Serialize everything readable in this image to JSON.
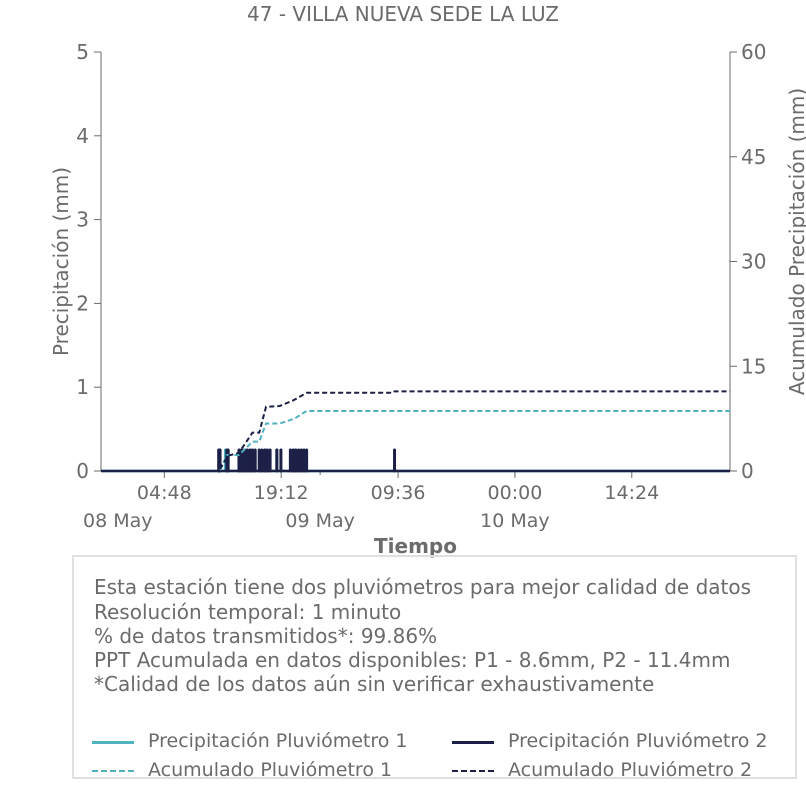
{
  "chart_data": {
    "type": "line",
    "title": "47 - VILLA NUEVA SEDE LA LUZ",
    "xlabel": "Tiempo",
    "ylabel": "Precipitación (mm)",
    "y2label": "Acumulado Precipitación (mm)",
    "xlim": [
      "2024-05-07 21:00",
      "2024-05-11 02:30"
    ],
    "ylim": [
      0,
      5
    ],
    "y2lim": [
      0,
      60
    ],
    "yticks": [
      0,
      1,
      2,
      3,
      4,
      5
    ],
    "y2ticks": [
      0,
      15,
      30,
      45,
      60
    ],
    "xticks": [
      {
        "t": "2024-05-08 04:48",
        "time": "04:48",
        "date": "08 May"
      },
      {
        "t": "2024-05-08 19:12",
        "time": "19:12",
        "date": ""
      },
      {
        "t": "2024-05-09 09:36",
        "time": "09:36",
        "date": ""
      },
      {
        "t": "2024-05-10 00:00",
        "time": "00:00",
        "date": "10 May"
      },
      {
        "t": "2024-05-10 14:24",
        "time": "14:24",
        "date": ""
      }
    ],
    "date_labels": [
      {
        "t": "2024-05-07 21:00",
        "label": "08 May"
      },
      {
        "t": "2024-05-09 00:00",
        "label": "09 May"
      },
      {
        "t": "2024-05-10 00:00",
        "label": "10 May"
      }
    ],
    "grid": false,
    "series": [
      {
        "name": "Precipitación Pluviómetro 1",
        "axis": "left",
        "color": "#4fb3bf",
        "style": "solid",
        "points": [
          [
            "2024-05-08 11:40",
            0.25
          ],
          [
            "2024-05-08 12:20",
            0.25
          ],
          [
            "2024-05-08 14:10",
            0.25
          ],
          [
            "2024-05-08 14:50",
            0.25
          ],
          [
            "2024-05-08 15:30",
            0.25
          ],
          [
            "2024-05-08 16:30",
            0.25
          ],
          [
            "2024-05-08 17:20",
            0.25
          ],
          [
            "2024-05-08 18:40",
            0.25
          ],
          [
            "2024-05-08 20:50",
            0.25
          ],
          [
            "2024-05-08 22:00",
            0.25
          ]
        ]
      },
      {
        "name": "Precipitación Pluviómetro 2",
        "axis": "left",
        "color": "#1c2047",
        "style": "solid",
        "points": [
          [
            "2024-05-08 11:30",
            0.25
          ],
          [
            "2024-05-08 11:40",
            0.25
          ],
          [
            "2024-05-08 12:30",
            0.25
          ],
          [
            "2024-05-08 12:40",
            0.25
          ],
          [
            "2024-05-08 14:00",
            0.25
          ],
          [
            "2024-05-08 14:20",
            0.25
          ],
          [
            "2024-05-08 14:40",
            0.25
          ],
          [
            "2024-05-08 15:00",
            0.25
          ],
          [
            "2024-05-08 15:20",
            0.25
          ],
          [
            "2024-05-08 15:40",
            0.25
          ],
          [
            "2024-05-08 16:00",
            0.25
          ],
          [
            "2024-05-08 16:30",
            0.25
          ],
          [
            "2024-05-08 16:50",
            0.25
          ],
          [
            "2024-05-08 17:10",
            0.25
          ],
          [
            "2024-05-08 17:30",
            0.25
          ],
          [
            "2024-05-08 17:50",
            0.25
          ],
          [
            "2024-05-08 18:40",
            0.25
          ],
          [
            "2024-05-08 19:10",
            0.25
          ],
          [
            "2024-05-08 20:20",
            0.25
          ],
          [
            "2024-05-08 20:40",
            0.25
          ],
          [
            "2024-05-08 21:00",
            0.25
          ],
          [
            "2024-05-08 21:20",
            0.25
          ],
          [
            "2024-05-08 21:40",
            0.25
          ],
          [
            "2024-05-08 22:00",
            0.25
          ],
          [
            "2024-05-08 22:20",
            0.25
          ],
          [
            "2024-05-09 09:10",
            0.25
          ]
        ]
      },
      {
        "name": "Acumulado Pluviómetro 1",
        "axis": "right",
        "color": "#4fb3bf",
        "style": "dashed",
        "points": [
          [
            "2024-05-07 21:00",
            0
          ],
          [
            "2024-05-08 11:40",
            0
          ],
          [
            "2024-05-08 12:30",
            2.3
          ],
          [
            "2024-05-08 14:00",
            2.3
          ],
          [
            "2024-05-08 15:40",
            4.2
          ],
          [
            "2024-05-08 16:30",
            4.2
          ],
          [
            "2024-05-08 17:20",
            6.8
          ],
          [
            "2024-05-08 19:00",
            6.8
          ],
          [
            "2024-05-08 20:50",
            7.5
          ],
          [
            "2024-05-08 22:20",
            8.6
          ],
          [
            "2024-05-11 02:30",
            8.6
          ]
        ]
      },
      {
        "name": "Acumulado Pluviómetro 2",
        "axis": "right",
        "color": "#1c2047",
        "style": "dashed",
        "points": [
          [
            "2024-05-07 21:00",
            0
          ],
          [
            "2024-05-08 11:30",
            0
          ],
          [
            "2024-05-08 12:40",
            2.2
          ],
          [
            "2024-05-08 14:00",
            2.6
          ],
          [
            "2024-05-08 15:40",
            5.5
          ],
          [
            "2024-05-08 16:30",
            5.5
          ],
          [
            "2024-05-08 17:20",
            9.2
          ],
          [
            "2024-05-08 19:00",
            9.3
          ],
          [
            "2024-05-08 20:40",
            10.1
          ],
          [
            "2024-05-08 22:20",
            11.2
          ],
          [
            "2024-05-09 09:00",
            11.2
          ],
          [
            "2024-05-09 09:10",
            11.4
          ],
          [
            "2024-05-11 02:30",
            11.4
          ]
        ]
      }
    ]
  },
  "info": {
    "lines": [
      "Esta estación tiene dos pluviómetros para mejor calidad de datos",
      "Resolución temporal: 1 minuto",
      "% de datos transmitidos*: 99.86%",
      "PPT Acumulada en datos disponibles: P1 - 8.6mm, P2 - 11.4mm",
      "*Calidad de los datos aún sin verificar exhaustivamente"
    ]
  },
  "legend": {
    "items": [
      {
        "label": "Precipitación Pluviómetro 1",
        "color": "#4fb3bf",
        "style": "solid"
      },
      {
        "label": "Precipitación Pluviómetro 2",
        "color": "#1c2047",
        "style": "solid"
      },
      {
        "label": "Acumulado Pluviómetro 1",
        "color": "#4fb3bf",
        "style": "dashed"
      },
      {
        "label": "Acumulado Pluviómetro 2",
        "color": "#1c2047",
        "style": "dashed"
      }
    ]
  }
}
